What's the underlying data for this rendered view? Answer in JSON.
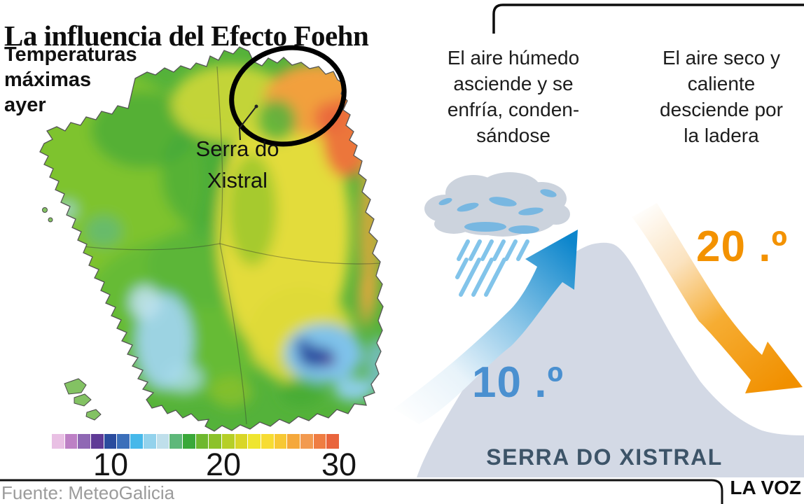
{
  "header": {
    "title": "La influencia del Efecto Foehn"
  },
  "map_panel": {
    "caption": "Temperaturas\nmáximas\nayer",
    "annotation_label": "Serra do\nXistral",
    "scale": {
      "colors": [
        "#e9c0e4",
        "#bd80c5",
        "#8f68b4",
        "#5f3a96",
        "#2a4c9e",
        "#3b6fba",
        "#46b8ea",
        "#93d2ec",
        "#bfdfeb",
        "#5eb87a",
        "#3aa839",
        "#6eb82e",
        "#8cc22b",
        "#b6cf27",
        "#d9d627",
        "#efe52f",
        "#f7dc33",
        "#f7c834",
        "#f5a83b",
        "#f29a50",
        "#ef7d42",
        "#e9643c"
      ],
      "ticks": [
        "10",
        "20",
        "30"
      ]
    }
  },
  "diagram": {
    "left_caption": "El aire húmedo\nasciende y se\nenfría, conden-\nsándose",
    "right_caption": "El aire seco y\ncaliente\ndesciende por\nla ladera",
    "temp_low": "10 .º",
    "temp_high": "20 .º",
    "mountain_label": "SERRA DO XISTRAL",
    "colors": {
      "temp_low": "#4a90d0",
      "temp_high": "#f39200",
      "ascend_arrow": "#0d86cc",
      "descend_arrow": "#f19000",
      "mountain": "#d3d9e5",
      "mountain_label": "#3d5468",
      "cloud": "#ccd3dd",
      "cloud_accent": "#6fb5e2",
      "rain": "#82c4ea"
    }
  },
  "footer": {
    "source": "Fuente: MeteoGalicia",
    "brand": "LA VOZ"
  }
}
